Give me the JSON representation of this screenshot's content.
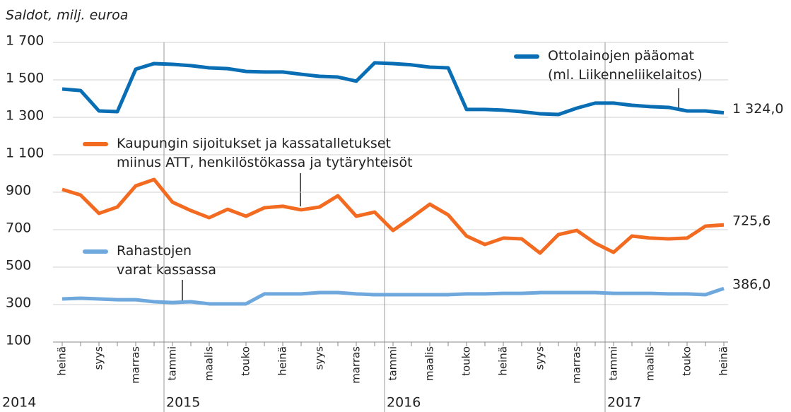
{
  "chart_data": {
    "type": "line",
    "title": "Saldot, milj. euroa",
    "categories": [
      "heinä",
      null,
      "syys",
      null,
      "marras",
      null,
      "tammi",
      null,
      "maalis",
      null,
      "touko",
      null,
      "heinä",
      null,
      "syys",
      null,
      "marras",
      null,
      "tammi",
      null,
      "maalis",
      null,
      "touko",
      null,
      "heinä",
      null,
      "syys",
      null,
      "marras",
      null,
      "tammi",
      null,
      "maalis",
      null,
      "touko",
      null,
      "heinä"
    ],
    "years": [
      "2014",
      "2015",
      "2016",
      "2017"
    ],
    "ylim": [
      100,
      1700
    ],
    "yticks": [
      100,
      300,
      500,
      700,
      900,
      {
        "value": 1100,
        "label": "1 100"
      },
      {
        "value": 1300,
        "label": "1 300"
      },
      {
        "value": 1500,
        "label": "1 500"
      },
      {
        "value": 1700,
        "label": "1 700"
      }
    ],
    "grid": true,
    "series": [
      {
        "name": "Ottolainojen pääomat\n(ml. Liikenneliikelaitos)",
        "color": "#0a6eb4",
        "values": [
          1451,
          1443,
          1334,
          1330,
          1557,
          1587,
          1583,
          1576,
          1564,
          1560,
          1545,
          1542,
          1542,
          1530,
          1519,
          1515,
          1493,
          1591,
          1587,
          1580,
          1568,
          1564,
          1342,
          1342,
          1338,
          1330,
          1319,
          1315,
          1349,
          1376,
          1376,
          1364,
          1357,
          1353,
          1334,
          1334,
          1324
        ],
        "value_labels": [
          null,
          null,
          null,
          null,
          null,
          null,
          null,
          null,
          null,
          null,
          null,
          null,
          null,
          null,
          null,
          null,
          null,
          null,
          null,
          null,
          null,
          null,
          null,
          null,
          null,
          null,
          null,
          null,
          null,
          null,
          null,
          null,
          null,
          null,
          null,
          null,
          "1 324,0"
        ]
      },
      {
        "name": "Kaupungin sijoitukset ja kassatalletukset\nmiinus ATT, henkilöstökassa ja tytäryhteisöt",
        "color": "#f26b21",
        "values": [
          915,
          885,
          787,
          821,
          934,
          968,
          847,
          802,
          764,
          809,
          772,
          817,
          825,
          806,
          821,
          881,
          772,
          794,
          696,
          764,
          836,
          779,
          666,
          621,
          655,
          651,
          575,
          674,
          696,
          628,
          579,
          666,
          655,
          651,
          655,
          719,
          725.6
        ],
        "value_labels": [
          null,
          null,
          null,
          null,
          null,
          null,
          null,
          null,
          null,
          null,
          null,
          null,
          null,
          null,
          null,
          null,
          null,
          null,
          null,
          null,
          null,
          null,
          null,
          null,
          null,
          null,
          null,
          null,
          null,
          null,
          null,
          null,
          null,
          null,
          null,
          null,
          "725,6"
        ]
      },
      {
        "name": "Rahastojen\nvarat kassassa",
        "color": "#6fa8dc",
        "values": [
          330,
          334,
          330,
          326,
          326,
          315,
          311,
          315,
          304,
          304,
          304,
          357,
          357,
          357,
          364,
          364,
          357,
          353,
          353,
          353,
          353,
          353,
          357,
          357,
          360,
          360,
          364,
          364,
          364,
          364,
          360,
          360,
          360,
          357,
          357,
          353,
          386
        ],
        "value_labels": [
          null,
          null,
          null,
          null,
          null,
          null,
          null,
          null,
          null,
          null,
          null,
          null,
          null,
          null,
          null,
          null,
          null,
          null,
          null,
          null,
          null,
          null,
          null,
          null,
          null,
          null,
          null,
          null,
          null,
          null,
          null,
          null,
          null,
          null,
          null,
          null,
          "386,0"
        ]
      }
    ]
  }
}
